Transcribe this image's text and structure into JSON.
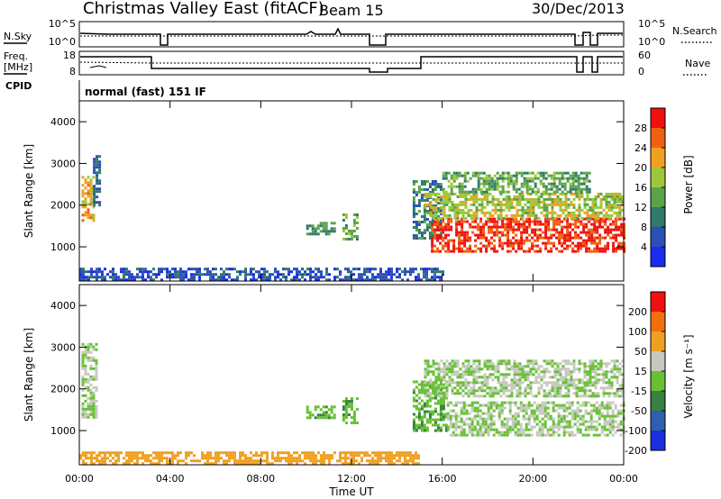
{
  "header": {
    "station": "Christmas Valley East (fitACF)",
    "beam": "Beam 15",
    "date": "30/Dec/2013"
  },
  "side_labels": {
    "nsky": "N.Sky",
    "nsearch": "N.Search",
    "freq": "Freq.",
    "freq_unit": "[MHz]",
    "nave": "Nave",
    "cpid": "CPID",
    "cpid_text": "normal (fast) 151 IF"
  },
  "strip_ticks": {
    "noise_left": [
      "10^5",
      "10^0"
    ],
    "noise_right": [
      "10^5",
      "10^0"
    ],
    "freq_left": [
      "18",
      "8"
    ],
    "nave_right": [
      "60",
      "0"
    ]
  },
  "colors": {
    "power_scale": [
      "#1b2bf0",
      "#2a4fb5",
      "#2f7a6a",
      "#5aa34a",
      "#9bc83a",
      "#f0a020",
      "#f06010",
      "#f01010"
    ],
    "velocity_scale": [
      "#1a2fe0",
      "#2f5fb0",
      "#3a8040",
      "#66c133",
      "#c8c8c0",
      "#f0a020",
      "#f07010",
      "#f01010"
    ]
  },
  "chart_data": [
    {
      "type": "heatmap",
      "panel": "power",
      "ylabel": "Slant Range [km]",
      "ylim": [
        180,
        4500
      ],
      "y_ticks": [
        "1000",
        "2000",
        "3000",
        "4000"
      ],
      "xlim": [
        0,
        24
      ],
      "colorbar_label": "Power [dB]",
      "colorbar_ticks": [
        "4",
        "8",
        "12",
        "16",
        "20",
        "24",
        "28"
      ],
      "colorbar_range": [
        0,
        32
      ],
      "regions": [
        {
          "x": [
            0.1,
            0.6
          ],
          "y": [
            1600,
            2700
          ],
          "value": 22
        },
        {
          "x": [
            0.6,
            0.9
          ],
          "y": [
            2000,
            3200
          ],
          "value": 8
        },
        {
          "x": [
            10.0,
            11.3
          ],
          "y": [
            1300,
            1600
          ],
          "value": 12
        },
        {
          "x": [
            11.6,
            12.3
          ],
          "y": [
            1200,
            1800
          ],
          "value": 14
        },
        {
          "x": [
            14.7,
            16.0
          ],
          "y": [
            1200,
            2600
          ],
          "value": 10
        },
        {
          "x": [
            15.5,
            24.0
          ],
          "y": [
            900,
            1700
          ],
          "value": 29
        },
        {
          "x": [
            15.2,
            24.0
          ],
          "y": [
            1700,
            2300
          ],
          "value": 18
        },
        {
          "x": [
            16.0,
            22.5
          ],
          "y": [
            2300,
            2800
          ],
          "value": 14
        },
        {
          "x": [
            0.0,
            16.0
          ],
          "y": [
            180,
            500
          ],
          "value": 6
        }
      ]
    },
    {
      "type": "heatmap",
      "panel": "velocity",
      "ylabel": "Slant Range [km]",
      "ylim": [
        180,
        4500
      ],
      "y_ticks": [
        "1000",
        "2000",
        "3000",
        "4000"
      ],
      "xlim": [
        0,
        24
      ],
      "xlabel": "Time UT",
      "x_ticks": [
        "00:00",
        "04:00",
        "08:00",
        "12:00",
        "16:00",
        "20:00",
        "00:00"
      ],
      "colorbar_label": "Velocity [m s⁻¹]",
      "colorbar_ticks": [
        "200",
        "100",
        "50",
        "15",
        "-15",
        "-50",
        "-100",
        "-200"
      ],
      "regions": [
        {
          "x": [
            0.1,
            0.8
          ],
          "y": [
            1300,
            3100
          ],
          "value": 0
        },
        {
          "x": [
            10.0,
            11.3
          ],
          "y": [
            1300,
            1600
          ],
          "value": 30
        },
        {
          "x": [
            11.6,
            12.3
          ],
          "y": [
            1200,
            1800
          ],
          "value": 30
        },
        {
          "x": [
            14.7,
            16.2
          ],
          "y": [
            1000,
            2200
          ],
          "value": 30
        },
        {
          "x": [
            16.2,
            24.0
          ],
          "y": [
            900,
            1700
          ],
          "value": 0
        },
        {
          "x": [
            15.2,
            24.0
          ],
          "y": [
            1800,
            2700
          ],
          "value": 0
        },
        {
          "x": [
            0.0,
            15.0
          ],
          "y": [
            180,
            500
          ],
          "value": -40
        }
      ]
    }
  ]
}
